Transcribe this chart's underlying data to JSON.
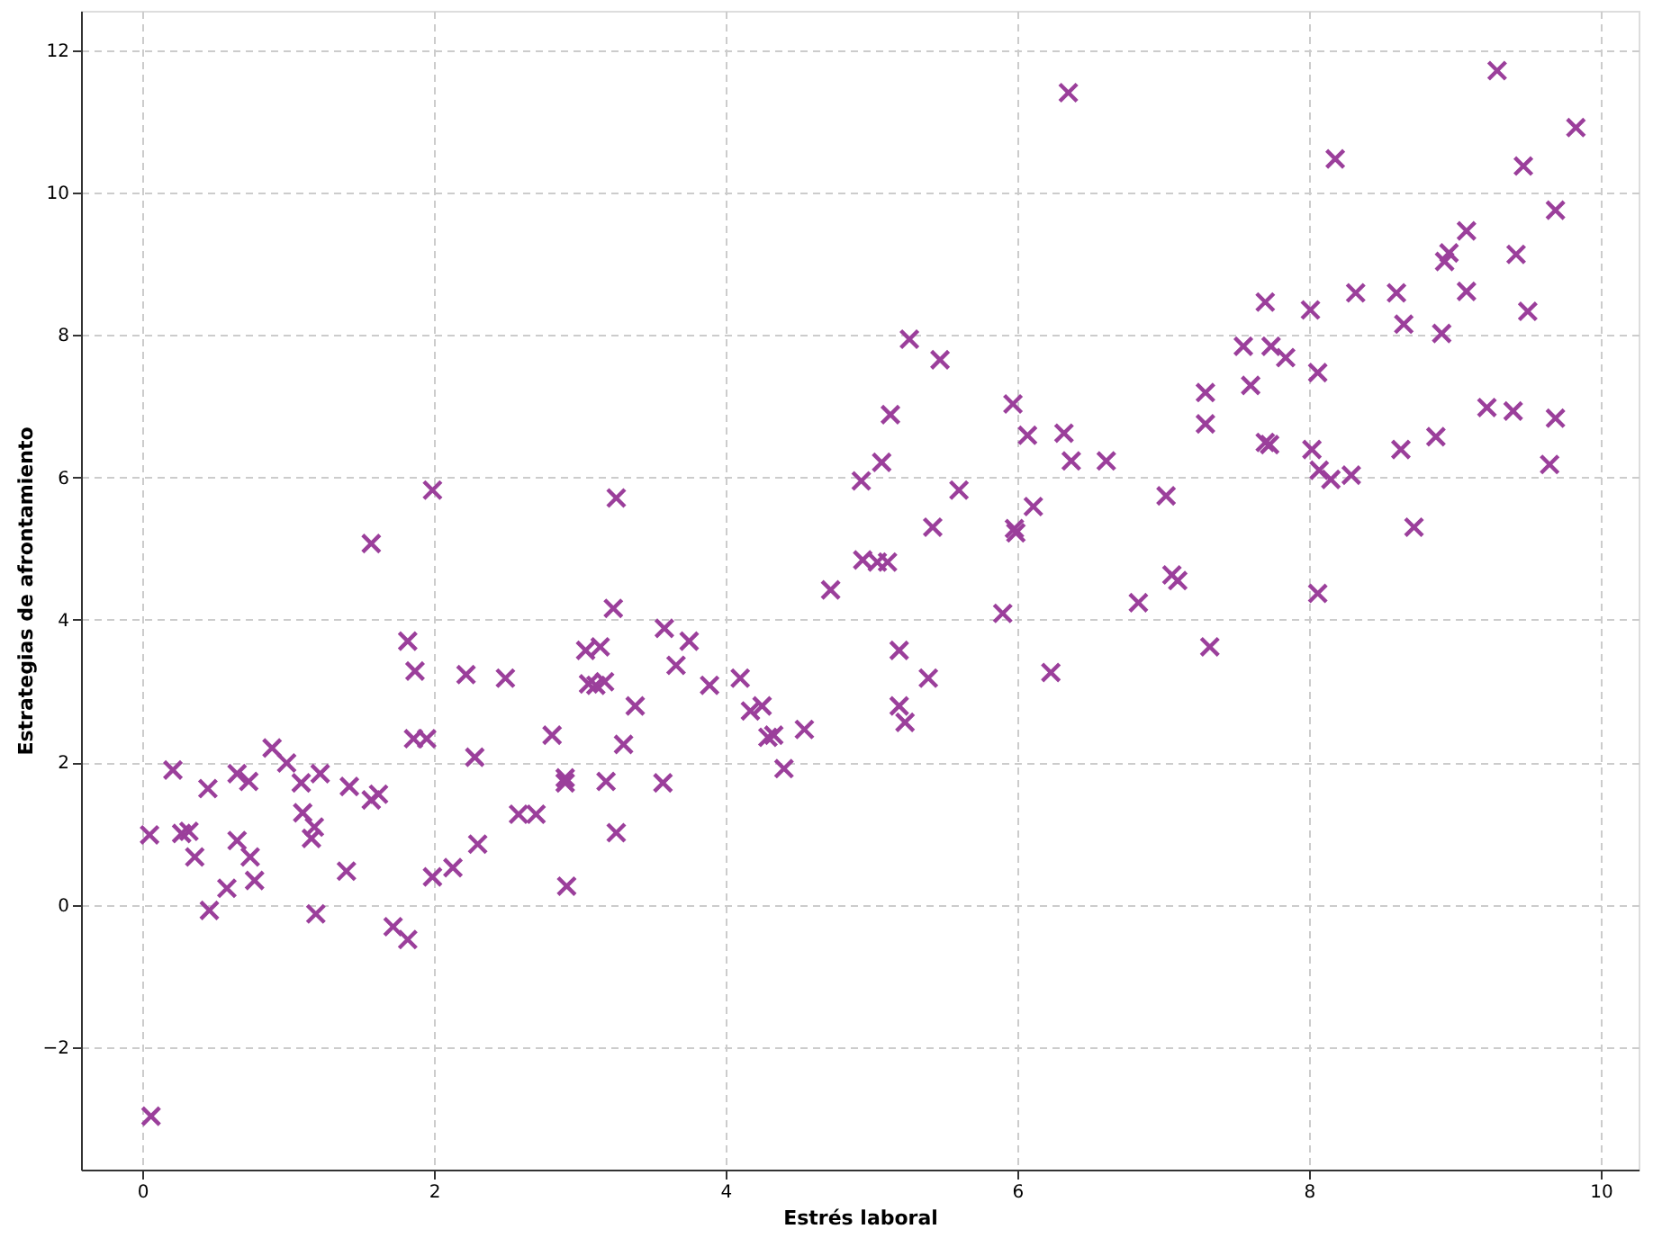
{
  "chart_data": {
    "type": "scatter",
    "xlabel": "Estrés laboral",
    "ylabel": "Estrategias de afrontamiento",
    "x": [
      0.05,
      0.21,
      0.27,
      0.32,
      0.36,
      0.45,
      0.46,
      0.06,
      0.58,
      0.65,
      0.65,
      0.73,
      0.74,
      0.77,
      0.89,
      0.99,
      1.09,
      1.1,
      1.16,
      1.18,
      1.19,
      1.22,
      1.4,
      1.42,
      1.57,
      1.57,
      1.62,
      1.72,
      1.82,
      1.82,
      1.86,
      1.87,
      1.95,
      1.99,
      1.99,
      2.13,
      2.22,
      2.28,
      2.3,
      2.49,
      2.58,
      2.7,
      2.81,
      2.9,
      2.9,
      2.91,
      3.04,
      3.06,
      3.11,
      3.14,
      3.17,
      3.18,
      3.23,
      3.25,
      3.25,
      3.3,
      3.38,
      3.57,
      3.58,
      3.66,
      3.75,
      3.89,
      4.1,
      4.17,
      4.25,
      4.29,
      4.33,
      4.4,
      4.54,
      4.72,
      4.93,
      4.94,
      5.04,
      5.07,
      5.11,
      5.13,
      5.19,
      5.19,
      5.23,
      5.26,
      5.39,
      5.42,
      5.47,
      5.6,
      5.9,
      5.97,
      5.98,
      5.99,
      6.07,
      6.11,
      6.23,
      6.32,
      6.35,
      6.37,
      6.61,
      6.83,
      7.02,
      7.06,
      7.1,
      7.29,
      7.29,
      7.32,
      7.55,
      7.6,
      7.7,
      7.7,
      7.73,
      7.74,
      7.84,
      8.01,
      8.02,
      8.06,
      8.06,
      8.07,
      8.18,
      8.15,
      8.32,
      8.29,
      8.6,
      8.63,
      8.65,
      8.72,
      8.87,
      8.91,
      8.93,
      8.96,
      9.08,
      9.08,
      9.22,
      9.29,
      9.4,
      9.42,
      9.47,
      9.5,
      9.65,
      9.69,
      9.69,
      9.83
    ],
    "series": [
      {
        "color": "#9b3f9b",
        "values": [
          0.98,
          1.89,
          1.0,
          1.03,
          0.67,
          1.63,
          -0.08,
          -2.97,
          0.23,
          1.84,
          0.9,
          1.73,
          0.67,
          0.34,
          2.2,
          1.99,
          1.71,
          1.29,
          0.93,
          1.09,
          -0.13,
          1.84,
          0.47,
          1.66,
          5.07,
          1.47,
          1.55,
          -0.31,
          3.7,
          -0.49,
          2.33,
          3.28,
          2.33,
          5.82,
          0.39,
          0.52,
          3.23,
          2.07,
          0.85,
          3.18,
          1.27,
          1.27,
          2.38,
          1.78,
          1.71,
          0.26,
          3.57,
          3.1,
          3.08,
          3.62,
          3.13,
          1.73,
          4.16,
          5.71,
          1.01,
          2.25,
          2.79,
          1.71,
          3.88,
          3.36,
          3.7,
          3.08,
          3.18,
          2.72,
          2.79,
          2.35,
          2.38,
          1.91,
          2.46,
          4.42,
          5.95,
          4.84,
          4.81,
          6.21,
          4.81,
          6.88,
          3.57,
          2.79,
          2.56,
          7.94,
          3.18,
          5.3,
          7.65,
          5.82,
          4.09,
          7.03,
          5.28,
          5.22,
          6.59,
          5.59,
          3.26,
          6.62,
          11.4,
          6.23,
          6.23,
          4.24,
          5.74,
          4.63,
          4.55,
          7.19,
          6.75,
          3.62,
          7.84,
          7.29,
          8.46,
          6.49,
          6.46,
          7.84,
          7.68,
          8.35,
          6.39,
          4.37,
          7.47,
          6.1,
          10.47,
          5.97,
          8.59,
          6.03,
          8.59,
          6.39,
          8.15,
          5.3,
          6.57,
          8.02,
          9.03,
          9.15,
          9.46,
          8.61,
          6.98,
          11.71,
          6.93,
          9.13,
          10.37,
          8.33,
          6.18,
          9.75,
          6.83,
          10.91
        ]
      }
    ],
    "xlim": [
      -0.42,
      10.26
    ],
    "ylim": [
      -3.72,
      12.55
    ],
    "xticks": [
      0,
      2,
      4,
      6,
      8,
      10
    ],
    "yticks": [
      -2,
      0,
      2,
      4,
      6,
      8,
      10,
      12
    ],
    "grid": true,
    "marker": "cross",
    "legend": false
  }
}
